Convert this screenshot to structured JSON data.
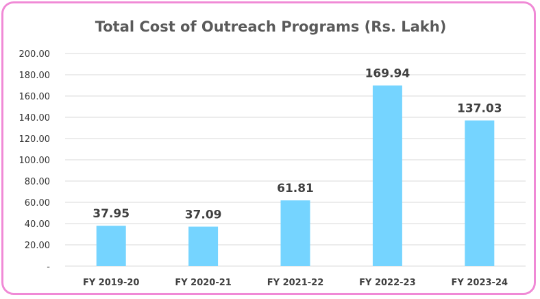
{
  "chart_data": {
    "type": "bar",
    "title": "Total Cost of Outreach Programs (Rs. Lakh)",
    "categories": [
      "FY 2019-20",
      "FY 2020-21",
      "FY 2021-22",
      "FY 2022-23",
      "FY 2023-24"
    ],
    "values": [
      37.95,
      37.09,
      61.81,
      169.94,
      137.03
    ],
    "data_labels": [
      "37.95",
      "37.09",
      "61.81",
      "169.94",
      "137.03"
    ],
    "ylim": [
      0,
      200
    ],
    "yticks": [
      0,
      20,
      40,
      60,
      80,
      100,
      120,
      140,
      160,
      180,
      200
    ],
    "ytick_labels": [
      "-",
      "20.00",
      "40.00",
      "60.00",
      "80.00",
      "100.00",
      "120.00",
      "140.00",
      "160.00",
      "180.00",
      "200.00"
    ],
    "grid": true,
    "legend": "none",
    "bar_color": "#75d4ff",
    "border_color": "#f08ad6"
  }
}
